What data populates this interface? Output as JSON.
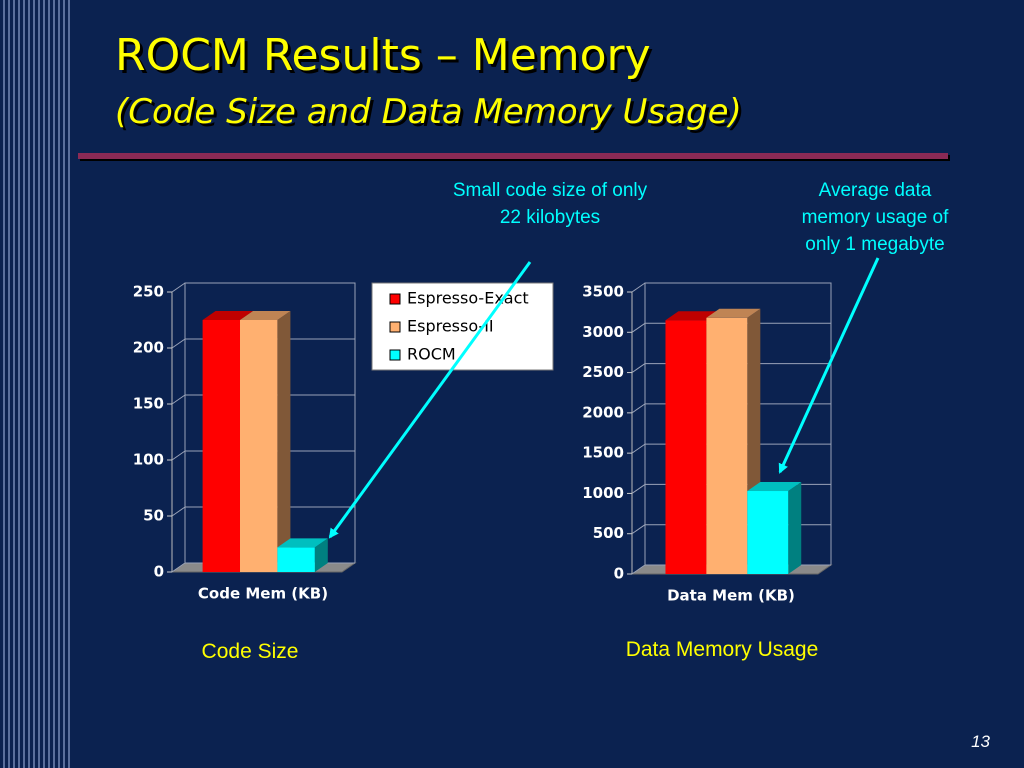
{
  "slide": {
    "title": "ROCM Results – Memory",
    "subtitle": "(Code Size and Data Memory Usage)",
    "page_number": "13"
  },
  "chart_data": [
    {
      "type": "bar",
      "categories": [
        "Code Mem (KB)"
      ],
      "series": [
        {
          "name": "Espresso-Exact",
          "color": "#ff0000",
          "values": [
            225
          ]
        },
        {
          "name": "Espresso-II",
          "color": "#ffb070",
          "values": [
            225
          ]
        },
        {
          "name": "ROCM",
          "color": "#00ffff",
          "values": [
            22
          ]
        }
      ],
      "ylim": [
        0,
        250
      ],
      "yticks": [
        0,
        50,
        100,
        150,
        200,
        250
      ],
      "grid": true,
      "legend": true,
      "annotation": "Small code size of only 22 kilobytes",
      "caption": "Code Size"
    },
    {
      "type": "bar",
      "categories": [
        "Data Mem (KB)"
      ],
      "series": [
        {
          "color": "#ff0000",
          "values": [
            3150
          ]
        },
        {
          "color": "#ffb070",
          "values": [
            3180
          ]
        },
        {
          "color": "#00ffff",
          "values": [
            1030
          ]
        }
      ],
      "ylim": [
        0,
        3500
      ],
      "yticks": [
        0,
        500,
        1000,
        1500,
        2000,
        2500,
        3000,
        3500
      ],
      "grid": true,
      "legend": false,
      "annotation": "Average data memory usage of only 1 megabyte",
      "caption": "Data Memory Usage"
    }
  ]
}
